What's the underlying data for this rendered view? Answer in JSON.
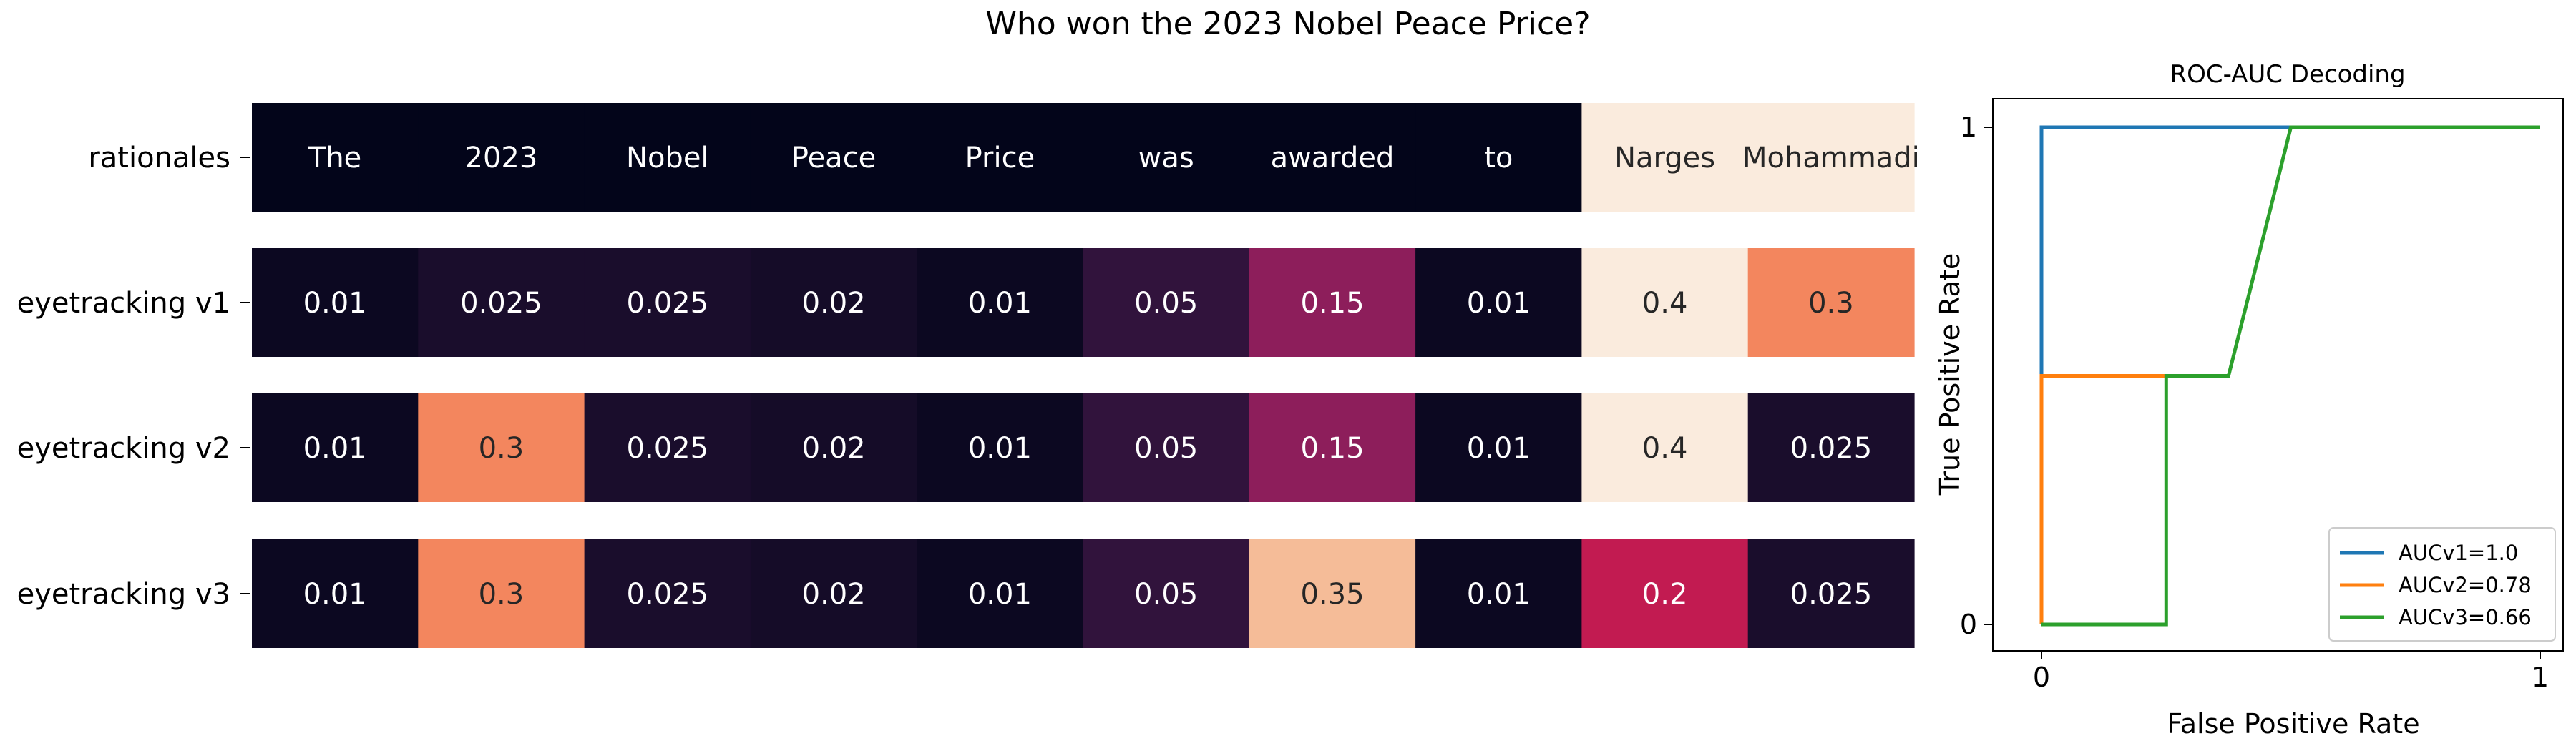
{
  "title": "Who won the 2023 Nobel Peace Price?",
  "chart_data": [
    {
      "type": "heatmap",
      "rows": [
        "rationales",
        "eyetracking v1",
        "eyetracking v2",
        "eyetracking v3"
      ],
      "tokens": [
        "The",
        "2023",
        "Nobel",
        "Peace",
        "Price",
        "was",
        "awarded",
        "to",
        "Narges",
        "Mohammadi"
      ],
      "values": [
        [
          0,
          0,
          0,
          0,
          0,
          0,
          0,
          0,
          0.4,
          0.4
        ],
        [
          0.01,
          0.025,
          0.025,
          0.02,
          0.01,
          0.05,
          0.15,
          0.01,
          0.4,
          0.3
        ],
        [
          0.01,
          0.3,
          0.025,
          0.02,
          0.01,
          0.05,
          0.15,
          0.01,
          0.4,
          0.025
        ],
        [
          0.01,
          0.3,
          0.025,
          0.02,
          0.01,
          0.05,
          0.35,
          0.01,
          0.2,
          0.025
        ]
      ],
      "cell_labels": [
        [
          "The",
          "2023",
          "Nobel",
          "Peace",
          "Price",
          "was",
          "awarded",
          "to",
          "Narges",
          "Mohammadi"
        ],
        [
          "0.01",
          "0.025",
          "0.025",
          "0.02",
          "0.01",
          "0.05",
          "0.15",
          "0.01",
          "0.4",
          "0.3"
        ],
        [
          "0.01",
          "0.3",
          "0.025",
          "0.02",
          "0.01",
          "0.05",
          "0.15",
          "0.01",
          "0.4",
          "0.025"
        ],
        [
          "0.01",
          "0.3",
          "0.025",
          "0.02",
          "0.01",
          "0.05",
          "0.35",
          "0.01",
          "0.2",
          "0.025"
        ]
      ],
      "colormap": "rocket",
      "vmin": 0,
      "vmax": 0.4
    },
    {
      "type": "line",
      "title": "ROC-AUC Decoding",
      "xlabel": "False Positive Rate",
      "ylabel": "True Positive Rate",
      "xlim": [
        0,
        1
      ],
      "ylim": [
        0,
        1
      ],
      "xticks": [
        "0",
        "1"
      ],
      "yticks": [
        "0",
        "1"
      ],
      "legend_position": "bottom-right",
      "series": [
        {
          "name": "AUCv1=1.0",
          "color": "#1f77b4",
          "x": [
            0,
            0,
            0.5,
            1
          ],
          "y": [
            0.5,
            1,
            1,
            1
          ]
        },
        {
          "name": "AUCv2=0.78",
          "color": "#ff7f0e",
          "x": [
            0,
            0,
            0.25
          ],
          "y": [
            0,
            0.5,
            0.5
          ]
        },
        {
          "name": "AUCv3=0.66",
          "color": "#2ca02c",
          "x": [
            0,
            0.25,
            0.25,
            0.375,
            0.5,
            1
          ],
          "y": [
            0,
            0,
            0.5,
            0.5,
            1,
            1
          ]
        }
      ]
    }
  ]
}
